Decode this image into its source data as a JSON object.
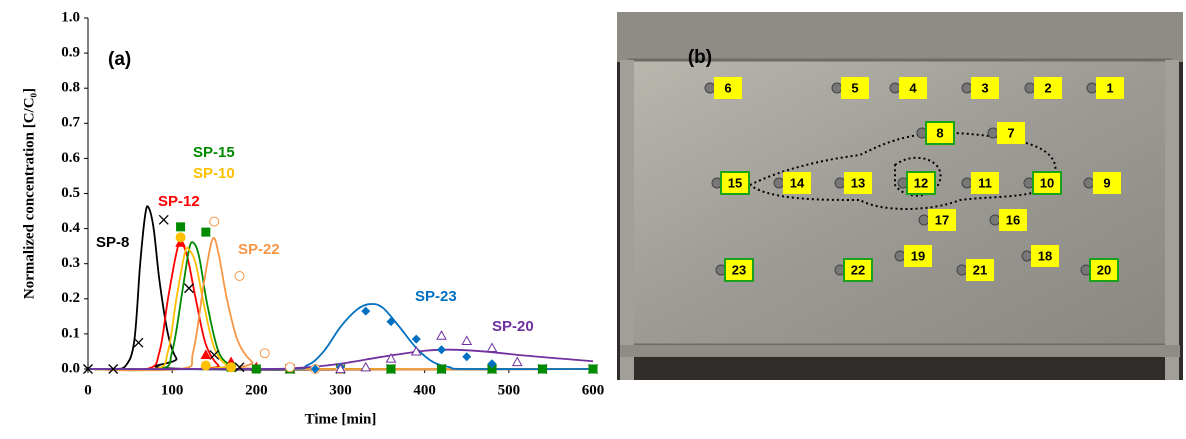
{
  "chart_data": {
    "type": "line",
    "panel_label": "(a)",
    "x_label": "Time [min]",
    "y_label": "Normalized concentration [C/C₀]",
    "xlim": [
      0,
      600
    ],
    "xticks": [
      0,
      100,
      200,
      300,
      400,
      500,
      600
    ],
    "ylim": [
      0,
      1
    ],
    "yticks": [
      {
        "value": 0,
        "label": "0.0"
      },
      0.1,
      0.2,
      0.3,
      0.4,
      0.5,
      0.6,
      0.7,
      0.8,
      0.9,
      {
        "value": 1,
        "label": "1.0"
      }
    ],
    "series": [
      {
        "name": "SP-8",
        "color": "#000000",
        "marker": "x",
        "x": [
          0,
          30,
          45,
          55,
          62,
          68,
          72,
          78,
          85,
          95,
          105,
          120,
          600
        ],
        "values": [
          0,
          0,
          0.01,
          0.08,
          0.3,
          0.44,
          0.46,
          0.4,
          0.25,
          0.1,
          0.03,
          0,
          0
        ],
        "obs_x": [
          0,
          30,
          60,
          90,
          120,
          150,
          180,
          240,
          300,
          360,
          420,
          480,
          540,
          600
        ],
        "obs_values": [
          0,
          0,
          0.075,
          0.425,
          0.23,
          0.04,
          0.005,
          0,
          0,
          0,
          0,
          0,
          0,
          0
        ]
      },
      {
        "name": "SP-12",
        "color": "#ff0000",
        "marker": "triangle",
        "x": [
          0,
          70,
          85,
          95,
          105,
          110,
          118,
          128,
          140,
          155,
          170,
          600
        ],
        "values": [
          0,
          0,
          0.05,
          0.2,
          0.33,
          0.36,
          0.32,
          0.2,
          0.07,
          0.01,
          0,
          0
        ],
        "obs_x": [
          110,
          140,
          170,
          200,
          240
        ],
        "obs_values": [
          0.36,
          0.04,
          0.02,
          0.005,
          0
        ]
      },
      {
        "name": "SP-15",
        "color": "#008a00",
        "marker": "square",
        "x": [
          0,
          85,
          100,
          112,
          120,
          125,
          132,
          142,
          155,
          170,
          185,
          600
        ],
        "values": [
          0,
          0,
          0.05,
          0.22,
          0.34,
          0.36,
          0.32,
          0.18,
          0.05,
          0.01,
          0,
          0
        ],
        "obs_x": [
          110,
          140,
          170,
          200,
          240,
          300,
          360,
          420,
          480,
          540,
          600
        ],
        "obs_values": [
          0.405,
          0.39,
          0.005,
          0,
          0,
          0,
          0,
          0,
          0,
          0,
          0
        ]
      },
      {
        "name": "SP-10",
        "color": "#ffc000",
        "marker": "circle",
        "x": [
          0,
          80,
          95,
          105,
          115,
          120,
          128,
          138,
          150,
          165,
          180,
          600
        ],
        "values": [
          0,
          0,
          0.05,
          0.2,
          0.33,
          0.34,
          0.3,
          0.18,
          0.06,
          0.01,
          0,
          0
        ],
        "obs_x": [
          110,
          140,
          170
        ],
        "obs_values": [
          0.375,
          0.01,
          0.005
        ]
      },
      {
        "name": "SP-22",
        "color": "#f79646",
        "marker": "circle-open",
        "x": [
          0,
          110,
          125,
          138,
          148,
          155,
          165,
          178,
          195,
          215,
          600
        ],
        "values": [
          0,
          0,
          0.05,
          0.25,
          0.37,
          0.33,
          0.2,
          0.08,
          0.02,
          0,
          0
        ],
        "obs_x": [
          150,
          180,
          210,
          240,
          270,
          300
        ],
        "obs_values": [
          0.42,
          0.265,
          0.045,
          0.005,
          0,
          0
        ]
      },
      {
        "name": "SP-23",
        "color": "#0070c0",
        "marker": "diamond",
        "x": [
          0,
          230,
          260,
          280,
          300,
          320,
          335,
          350,
          370,
          390,
          410,
          430,
          450,
          600
        ],
        "values": [
          0,
          0,
          0.01,
          0.05,
          0.12,
          0.17,
          0.185,
          0.175,
          0.12,
          0.06,
          0.02,
          0.005,
          0,
          0
        ],
        "obs_x": [
          270,
          300,
          330,
          360,
          390,
          420,
          450,
          480
        ],
        "obs_values": [
          0,
          0.005,
          0.165,
          0.135,
          0.085,
          0.055,
          0.035,
          0.015
        ]
      },
      {
        "name": "SP-20",
        "color": "#7030a0",
        "marker": "triangle-open",
        "x": [
          0,
          200,
          250,
          300,
          350,
          400,
          430,
          470,
          520,
          560,
          600
        ],
        "values": [
          0,
          0,
          0.003,
          0.015,
          0.035,
          0.052,
          0.055,
          0.05,
          0.038,
          0.03,
          0.022
        ],
        "obs_x": [
          300,
          330,
          360,
          390,
          420,
          450,
          480,
          510
        ],
        "obs_values": [
          0,
          0.005,
          0.03,
          0.05,
          0.095,
          0.08,
          0.06,
          0.02
        ]
      }
    ]
  },
  "photo": {
    "panel_label": "(b)",
    "ports": [
      {
        "label": "1",
        "outlined": false
      },
      {
        "label": "2",
        "outlined": false
      },
      {
        "label": "3",
        "outlined": false
      },
      {
        "label": "4",
        "outlined": false
      },
      {
        "label": "5",
        "outlined": false
      },
      {
        "label": "6",
        "outlined": false
      },
      {
        "label": "7",
        "outlined": false
      },
      {
        "label": "8",
        "outlined": true
      },
      {
        "label": "9",
        "outlined": false
      },
      {
        "label": "10",
        "outlined": true
      },
      {
        "label": "11",
        "outlined": false
      },
      {
        "label": "12",
        "outlined": true
      },
      {
        "label": "13",
        "outlined": false
      },
      {
        "label": "14",
        "outlined": false
      },
      {
        "label": "15",
        "outlined": true
      },
      {
        "label": "16",
        "outlined": false
      },
      {
        "label": "17",
        "outlined": false
      },
      {
        "label": "18",
        "outlined": false
      },
      {
        "label": "19",
        "outlined": false
      },
      {
        "label": "20",
        "outlined": true
      },
      {
        "label": "21",
        "outlined": false
      },
      {
        "label": "22",
        "outlined": true
      },
      {
        "label": "23",
        "outlined": true
      }
    ]
  }
}
